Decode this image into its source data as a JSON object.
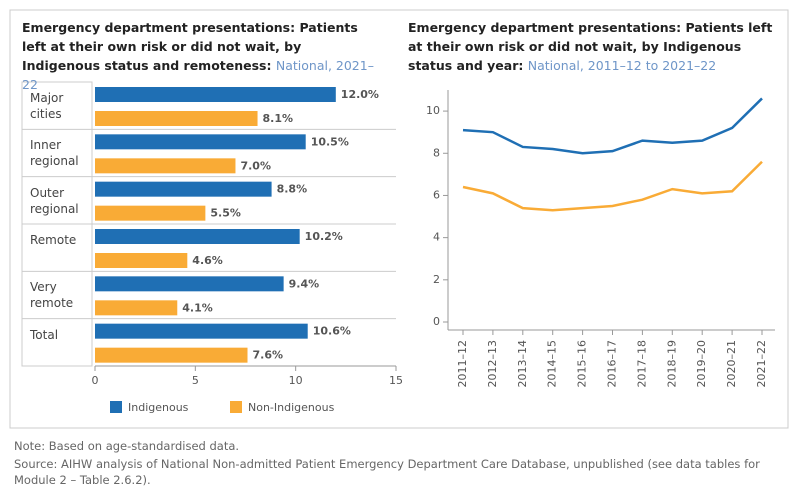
{
  "chart_data": [
    {
      "type": "hbar",
      "title": "Emergency department presentations: Patients left at their own risk or did not wait, by Indigenous status and remoteness:",
      "subtitle": "National, 2021–22",
      "categories": [
        "Major cities",
        "Inner regional",
        "Outer regional",
        "Remote",
        "Very remote",
        "Total"
      ],
      "series": [
        {
          "name": "Indigenous",
          "color": "#1f6fb4",
          "values": [
            12.0,
            10.5,
            8.8,
            10.2,
            9.4,
            10.6
          ],
          "value_labels": [
            "12.0%",
            "10.5%",
            "8.8%",
            "10.2%",
            "9.4%",
            "10.6%"
          ]
        },
        {
          "name": "Non-Indigenous",
          "color": "#f9ab36",
          "values": [
            8.1,
            7.0,
            5.5,
            4.6,
            4.1,
            7.6
          ],
          "value_labels": [
            "8.1%",
            "7.0%",
            "5.5%",
            "4.6%",
            "4.1%",
            "7.6%"
          ]
        }
      ],
      "xlim": [
        0,
        15
      ],
      "xticks": [
        0,
        5,
        10,
        15
      ]
    },
    {
      "type": "line",
      "title": "Emergency department presentations: Patients left at their own risk or did not wait, by Indigenous status and year:",
      "subtitle": "National, 2011–12 to 2021–22",
      "categories": [
        "2011–12",
        "2012–13",
        "2013–14",
        "2014–15",
        "2015–16",
        "2016–17",
        "2017–18",
        "2018–19",
        "2019–20",
        "2020–21",
        "2021–22"
      ],
      "series": [
        {
          "color": "#1f6fb4",
          "values": [
            9.1,
            9.0,
            8.3,
            8.2,
            8.0,
            8.1,
            8.6,
            8.5,
            8.6,
            9.2,
            10.6
          ]
        },
        {
          "color": "#f9ab36",
          "values": [
            6.4,
            6.1,
            5.4,
            5.3,
            5.4,
            5.5,
            5.8,
            6.3,
            6.1,
            6.2,
            7.6
          ]
        }
      ],
      "ylim": [
        0,
        11
      ],
      "yticks": [
        0,
        2,
        4,
        6,
        8,
        10
      ],
      "grid": false
    }
  ],
  "notes": [
    "Note: Based on age-standardised data.",
    "Source: AIHW analysis of National Non-admitted Patient Emergency Department Care Database, unpublished (see data tables for Module 2 – Table 2.6.2)."
  ]
}
